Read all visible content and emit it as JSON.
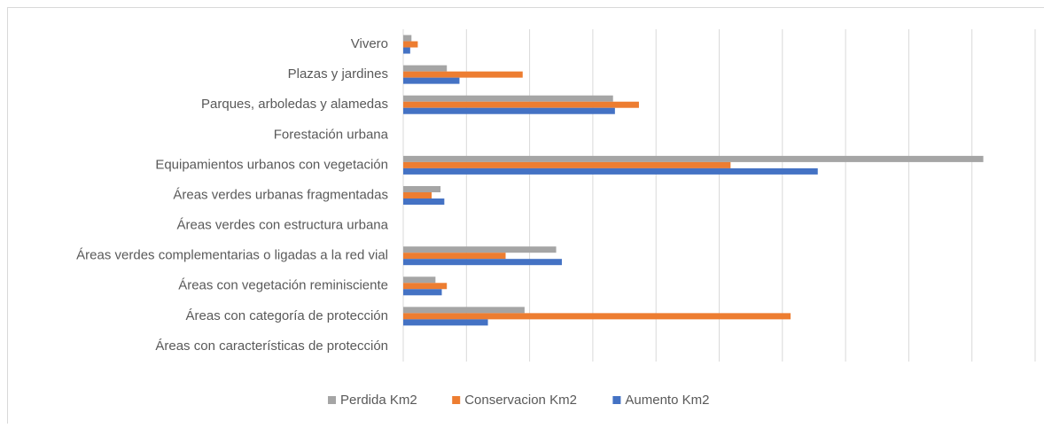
{
  "chart_data": {
    "type": "hbar",
    "categories": [
      "Vivero",
      "Plazas y jardines",
      "Parques, arboledas y alamedas",
      "Forestación urbana",
      "Equipamientos urbanos con vegetación",
      "Áreas verdes urbanas fragmentadas",
      "Áreas verdes con estructura urbana",
      "Áreas verdes complementarias o ligadas a la red vial",
      "Áreas con vegetación reminisciente",
      "Áreas con categoría de protección",
      "Áreas con características de protección"
    ],
    "series": [
      {
        "name": "Perdida Km2",
        "color": "#a5a5a5",
        "values": [
          0.13,
          0.69,
          3.32,
          0,
          9.18,
          0.59,
          0,
          2.42,
          0.51,
          1.92,
          0
        ]
      },
      {
        "name": "Conservacion Km2",
        "color": "#ed7d31",
        "values": [
          0.23,
          1.89,
          3.73,
          0,
          5.18,
          0.45,
          0,
          1.62,
          0.69,
          6.13,
          0
        ]
      },
      {
        "name": "Aumento Km2",
        "color": "#4472c4",
        "values": [
          0.11,
          0.89,
          3.35,
          0,
          6.56,
          0.65,
          0,
          2.51,
          0.61,
          1.34,
          0
        ]
      }
    ],
    "xlim": [
      0,
      10
    ],
    "xticks": [
      0,
      1,
      2,
      3,
      4,
      5,
      6,
      7,
      8,
      9,
      10
    ],
    "grid": true,
    "legend": "bottom"
  }
}
